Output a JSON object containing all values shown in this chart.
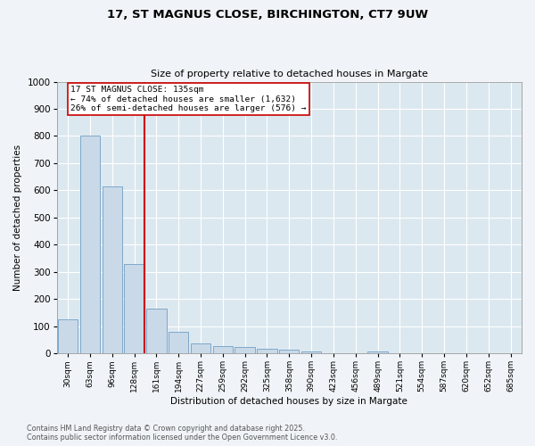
{
  "title1": "17, ST MAGNUS CLOSE, BIRCHINGTON, CT7 9UW",
  "title2": "Size of property relative to detached houses in Margate",
  "xlabel": "Distribution of detached houses by size in Margate",
  "ylabel": "Number of detached properties",
  "categories": [
    "30sqm",
    "63sqm",
    "96sqm",
    "128sqm",
    "161sqm",
    "194sqm",
    "227sqm",
    "259sqm",
    "292sqm",
    "325sqm",
    "358sqm",
    "390sqm",
    "423sqm",
    "456sqm",
    "489sqm",
    "521sqm",
    "554sqm",
    "587sqm",
    "620sqm",
    "652sqm",
    "685sqm"
  ],
  "values": [
    125,
    800,
    615,
    330,
    165,
    80,
    38,
    27,
    25,
    18,
    13,
    8,
    1,
    0,
    8,
    0,
    0,
    0,
    0,
    0,
    0
  ],
  "bar_color": "#c9d9e8",
  "bar_edge_color": "#7fa8c9",
  "marker_label": "17 ST MAGNUS CLOSE: 135sqm",
  "annotation_line1": "← 74% of detached houses are smaller (1,632)",
  "annotation_line2": "26% of semi-detached houses are larger (576) →",
  "marker_color": "#cc0000",
  "ylim": [
    0,
    1000
  ],
  "yticks": [
    0,
    100,
    200,
    300,
    400,
    500,
    600,
    700,
    800,
    900,
    1000
  ],
  "footnote1": "Contains HM Land Registry data © Crown copyright and database right 2025.",
  "footnote2": "Contains public sector information licensed under the Open Government Licence v3.0.",
  "bg_color": "#f0f4f8",
  "plot_bg_color": "#dce8f0"
}
